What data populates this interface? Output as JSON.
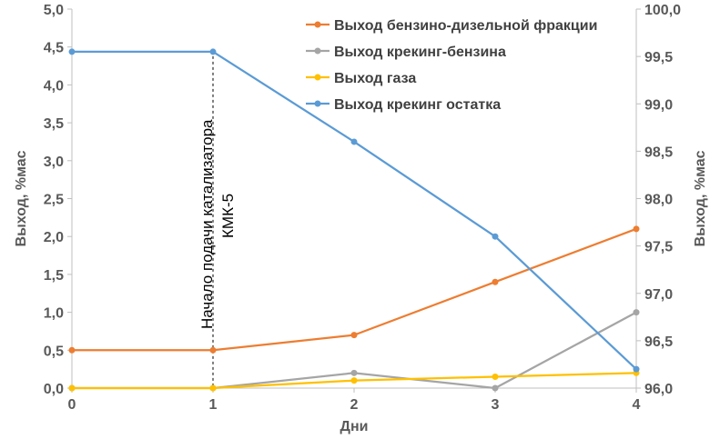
{
  "chart_data": {
    "type": "line",
    "x": [
      0,
      1,
      2,
      3,
      4
    ],
    "xlabel": "Дни",
    "ylabel_left": "Выход, %мас",
    "ylabel_right": "Выход, %мас",
    "xlim": [
      0,
      4
    ],
    "ylim_left": [
      0.0,
      5.0
    ],
    "ylim_right": [
      96.0,
      100.0
    ],
    "x_ticks": [
      "0",
      "1",
      "2",
      "3",
      "4"
    ],
    "y_left_ticks": [
      "0,0",
      "0,5",
      "1,0",
      "1,5",
      "2,0",
      "2,5",
      "3,0",
      "3,5",
      "4,0",
      "4,5",
      "5,0"
    ],
    "y_right_ticks": [
      "96,0",
      "96,5",
      "97,0",
      "97,5",
      "98,0",
      "98,5",
      "99,0",
      "99,5",
      "100,0"
    ],
    "grid": false,
    "legend_position": "top-right",
    "series": [
      {
        "name": "Выход бензино-дизельной фракции",
        "axis": "left",
        "color": "#ED7D31",
        "values": [
          0.5,
          0.5,
          0.7,
          1.4,
          2.1
        ]
      },
      {
        "name": "Выход крекинг-бензина",
        "axis": "left",
        "color": "#A5A5A5",
        "values": [
          0.0,
          0.0,
          0.2,
          0.0,
          1.0
        ]
      },
      {
        "name": "Выход газа",
        "axis": "left",
        "color": "#FFC000",
        "values": [
          0.0,
          0.0,
          0.1,
          0.15,
          0.2
        ]
      },
      {
        "name": "Выход крекинг остатка",
        "axis": "right",
        "color": "#5B9BD5",
        "values": [
          99.55,
          99.55,
          98.6,
          97.6,
          96.2
        ]
      }
    ],
    "annotation": {
      "x": 1,
      "lines": [
        "Начало подачи катализатора",
        "КМК-5"
      ]
    }
  }
}
